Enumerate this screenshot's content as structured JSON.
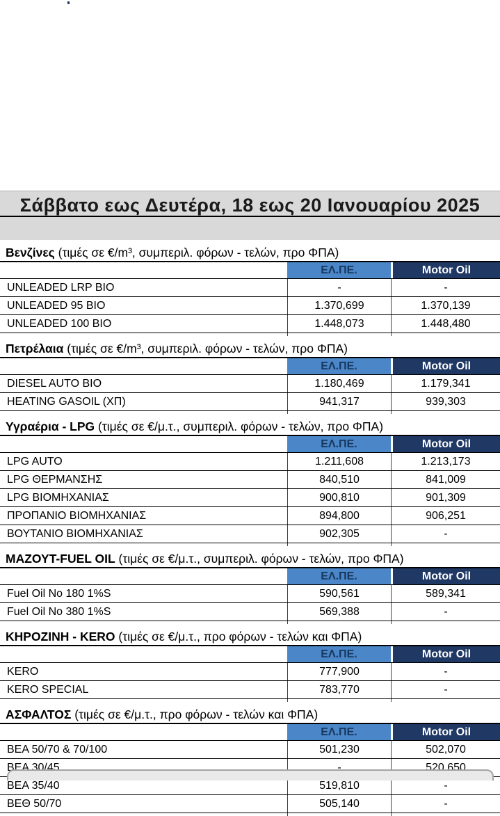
{
  "title": "Σάββατο εως Δευτέρα, 18 εως 20 Ιανουαρίου 2025",
  "columns": {
    "elpe": "ΕΛ.ΠΕ.",
    "motor_oil": "Motor Oil"
  },
  "colors": {
    "elpe_header_bg": "#4A86C8",
    "elpe_header_text": "#17375E",
    "motor_oil_header_bg": "#1F3864",
    "motor_oil_header_text": "#FFFFFF",
    "title_band_bg": "#D9D9D9"
  },
  "sections": [
    {
      "name": "Βενζίνες",
      "note": "(τιμές σε €/m³, συμπεριλ. φόρων - τελών, προ ΦΠΑ)",
      "rows": [
        {
          "label": "UNLEADED LRP BIO",
          "elpe": "-",
          "motor_oil": "-"
        },
        {
          "label": "UNLEADED 95 BIO",
          "elpe": "1.370,699",
          "motor_oil": "1.370,139"
        },
        {
          "label": "UNLEADED 100 BIO",
          "elpe": "1.448,073",
          "motor_oil": "1.448,480"
        }
      ]
    },
    {
      "name": "Πετρέλαια",
      "note": "(τιμές σε €/m³, συμπεριλ. φόρων - τελών, προ ΦΠΑ)",
      "rows": [
        {
          "label": "DIESEL AUTO BIO",
          "elpe": "1.180,469",
          "motor_oil": "1.179,341"
        },
        {
          "label": "HEATING GASOIL (ΧΠ)",
          "elpe": "941,317",
          "motor_oil": "939,303"
        }
      ]
    },
    {
      "name": "Υγραέρια - LPG",
      "note": "(τιμές σε €/μ.τ., συμπεριλ. φόρων - τελών, προ ΦΠΑ)",
      "rows": [
        {
          "label": "LPG AUTO",
          "elpe": "1.211,608",
          "motor_oil": "1.213,173"
        },
        {
          "label": "LPG ΘΕΡΜΑΝΣΗΣ",
          "elpe": "840,510",
          "motor_oil": "841,009"
        },
        {
          "label": "LPG ΒΙΟΜΗΧΑΝΙΑΣ",
          "elpe": "900,810",
          "motor_oil": "901,309"
        },
        {
          "label": "ΠΡΟΠΑΝΙΟ ΒΙΟΜΗΧΑΝΙΑΣ",
          "elpe": "894,800",
          "motor_oil": "906,251"
        },
        {
          "label": "ΒΟΥΤΑΝΙΟ ΒΙΟΜΗΧΑΝΙΑΣ",
          "elpe": "902,305",
          "motor_oil": "-"
        }
      ]
    },
    {
      "name": "ΜΑΖΟΥΤ-FUEL OIL",
      "note": "(τιμές σε €/μ.τ., συμπεριλ. φόρων - τελών, προ ΦΠΑ)",
      "rows": [
        {
          "label": "Fuel Oil No 180 1%S",
          "elpe": "590,561",
          "motor_oil": "589,341"
        },
        {
          "label": "Fuel Oil No 380 1%S",
          "elpe": "569,388",
          "motor_oil": "-"
        }
      ]
    },
    {
      "name": "ΚΗΡΟΖΙΝΗ - KERO",
      "note": "(τιμές σε €/μ.τ., προ φόρων - τελών και ΦΠΑ)",
      "rows": [
        {
          "label": "KERO",
          "elpe": "777,900",
          "motor_oil": "-"
        },
        {
          "label": "KERO SPECIAL",
          "elpe": "783,770",
          "motor_oil": "-"
        }
      ]
    },
    {
      "name": "ΑΣΦΑΛΤΟΣ",
      "note": "(τιμές σε €/μ.τ., προ φόρων - τελών και ΦΠΑ)",
      "rows": [
        {
          "label": "ΒΕΑ 50/70 & 70/100",
          "elpe": "501,230",
          "motor_oil": "502,070"
        },
        {
          "label": "ΒΕΑ 30/45",
          "elpe": "-",
          "motor_oil": "520,650"
        },
        {
          "label": "ΒΕΑ 35/40",
          "elpe": "519,810",
          "motor_oil": "-"
        },
        {
          "label": "ΒΕΘ 50/70",
          "elpe": "505,140",
          "motor_oil": "-"
        }
      ]
    }
  ]
}
